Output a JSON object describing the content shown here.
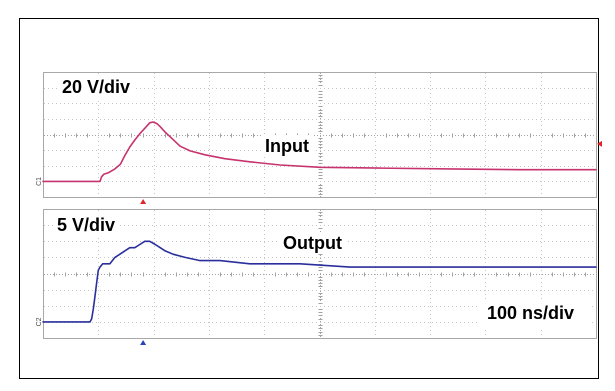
{
  "colors": {
    "background": "#ffffff",
    "frame": "#000000"
  },
  "chart_data": [
    {
      "type": "line",
      "scale_label": "20 V/div",
      "xlim": [
        0,
        1000
      ],
      "ylim": [
        -20,
        140
      ],
      "grid": {
        "show": true,
        "x_divisions": 10,
        "y_divisions": 8
      },
      "series": [
        {
          "name": "Input",
          "ground_marker": "C1",
          "color": "#c7336e",
          "x": [
            0,
            103,
            106,
            110,
            118,
            130,
            140,
            148,
            157,
            166,
            175,
            184,
            193,
            199,
            206,
            212,
            221,
            230,
            248,
            266,
            293,
            329,
            374,
            429,
            501,
            609,
            736,
            863,
            1000
          ],
          "y": [
            0,
            0,
            6,
            9,
            11,
            16,
            22,
            33,
            44,
            53,
            61,
            68,
            75,
            76,
            74,
            70,
            63,
            57,
            45,
            39,
            34,
            29,
            25,
            21,
            18,
            17,
            16,
            15,
            15
          ]
        }
      ],
      "trigger": {
        "time_ns": 181,
        "level_v": 48,
        "color": "#e0262d"
      }
    },
    {
      "type": "line",
      "scale_label": "5 V/div",
      "timebase_label": "100 ns/div",
      "xlim": [
        0,
        1000
      ],
      "ylim": [
        -5,
        35
      ],
      "grid": {
        "show": true,
        "x_divisions": 10,
        "y_divisions": 8
      },
      "series": [
        {
          "name": "Output",
          "ground_marker": "C2",
          "color": "#2a2f9c",
          "x": [
            0,
            85,
            88,
            91,
            94,
            97,
            100,
            103,
            108,
            114,
            121,
            130,
            139,
            148,
            157,
            166,
            175,
            184,
            193,
            203,
            212,
            221,
            235,
            257,
            284,
            320,
            374,
            465,
            555,
            646,
            826,
            1000
          ],
          "y": [
            0,
            0,
            1,
            4,
            8,
            12,
            16,
            17,
            18,
            18,
            18,
            20,
            21,
            22,
            23,
            23,
            24,
            25,
            25,
            24,
            23,
            22,
            21,
            20,
            19,
            19,
            18,
            18,
            17,
            17,
            17,
            17
          ]
        }
      ],
      "trigger": {
        "time_ns": 181,
        "color": "#2b44b5"
      }
    }
  ]
}
